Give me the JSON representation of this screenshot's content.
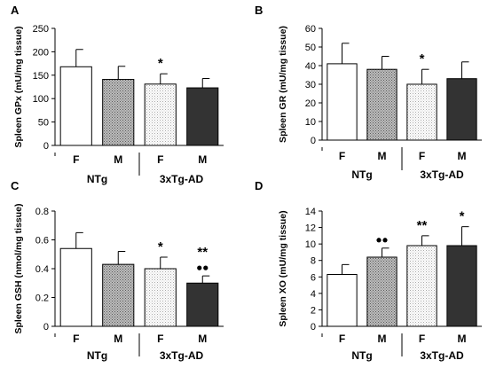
{
  "chart_data": [
    {
      "panel": "A",
      "type": "bar",
      "ylabel": "Spleen GPx (mU/mg tissue)",
      "ylim": [
        0,
        250
      ],
      "yticks": [
        0,
        50,
        100,
        150,
        200,
        250
      ],
      "categories": [
        "F",
        "M",
        "F",
        "M"
      ],
      "groups": [
        {
          "label": "NTg",
          "members": [
            0,
            1
          ]
        },
        {
          "label": "3xTg-AD",
          "members": [
            2,
            3
          ]
        }
      ],
      "values": [
        168,
        141,
        131,
        123
      ],
      "errors": [
        37,
        28,
        22,
        20
      ],
      "markers": [
        "",
        "",
        "*",
        ""
      ]
    },
    {
      "panel": "B",
      "type": "bar",
      "ylabel": "Spleen GR (mU/mg tissue)",
      "ylim": [
        0,
        60
      ],
      "yticks": [
        0,
        10,
        20,
        30,
        40,
        50,
        60
      ],
      "categories": [
        "F",
        "M",
        "F",
        "M"
      ],
      "groups": [
        {
          "label": "NTg",
          "members": [
            0,
            1
          ]
        },
        {
          "label": "3xTg-AD",
          "members": [
            2,
            3
          ]
        }
      ],
      "values": [
        41,
        38,
        30,
        33
      ],
      "errors": [
        11,
        7,
        8,
        9
      ],
      "markers": [
        "",
        "",
        "*",
        ""
      ]
    },
    {
      "panel": "C",
      "type": "bar",
      "ylabel": "Spleen GSH (nmol/mg tissue)",
      "ylim": [
        0,
        0.8
      ],
      "yticks": [
        "0",
        "0.2",
        "0.4",
        "0.6",
        "0.8"
      ],
      "categories": [
        "F",
        "M",
        "F",
        "M"
      ],
      "groups": [
        {
          "label": "NTg",
          "members": [
            0,
            1
          ]
        },
        {
          "label": "3xTg-AD",
          "members": [
            2,
            3
          ]
        }
      ],
      "values": [
        0.54,
        0.43,
        0.4,
        0.3
      ],
      "errors": [
        0.11,
        0.09,
        0.08,
        0.05
      ],
      "markers": [
        "",
        "",
        "*",
        "**"
      ],
      "dot_markers": [
        0,
        0,
        0,
        2
      ]
    },
    {
      "panel": "D",
      "type": "bar",
      "ylabel": "Spleen XO (mU/mg tissue)",
      "ylim": [
        0,
        14
      ],
      "yticks": [
        0,
        2,
        4,
        6,
        8,
        10,
        12,
        14
      ],
      "categories": [
        "F",
        "M",
        "F",
        "M"
      ],
      "groups": [
        {
          "label": "NTg",
          "members": [
            0,
            1
          ]
        },
        {
          "label": "3xTg-AD",
          "members": [
            2,
            3
          ]
        }
      ],
      "values": [
        6.3,
        8.4,
        9.8,
        9.8
      ],
      "errors": [
        1.2,
        1.1,
        1.2,
        2.3
      ],
      "markers": [
        "",
        "",
        "**",
        "*"
      ],
      "dot_markers": [
        0,
        2,
        0,
        0
      ]
    }
  ]
}
